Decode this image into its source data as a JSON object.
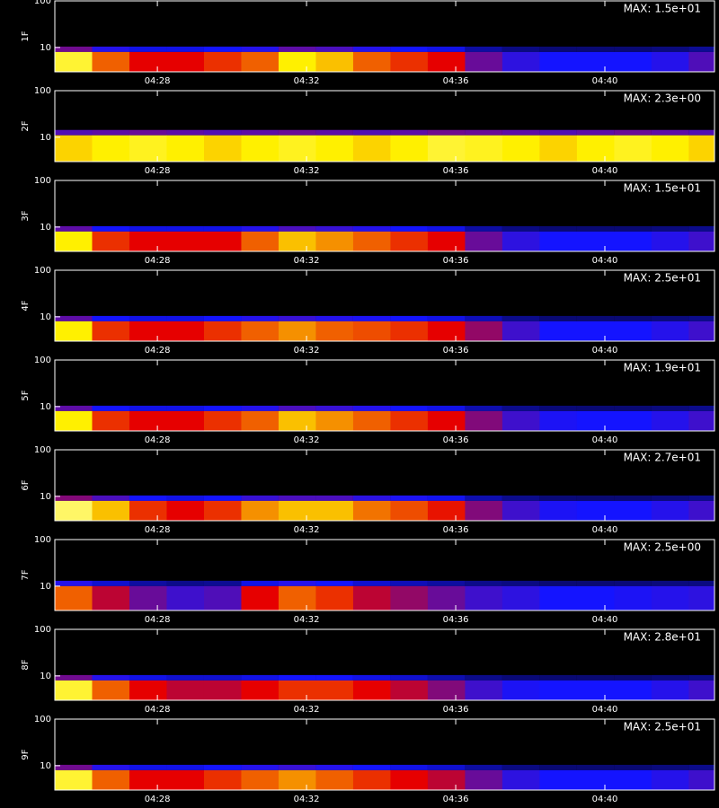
{
  "chart_data": [
    {
      "type": "heatmap",
      "label": "1F",
      "annotation": "MAX: 1.5e+01",
      "log_y": true,
      "ylim": [
        3,
        100
      ],
      "yticks": [
        10,
        100
      ],
      "xlim": [
        265.25,
        282.94
      ],
      "xticks": [
        {
          "value": 268,
          "label": "04:28"
        },
        {
          "value": 272,
          "label": "04:32"
        },
        {
          "value": 276,
          "label": "04:36"
        },
        {
          "value": 280,
          "label": "04:40"
        }
      ],
      "band": [
        3,
        8
      ],
      "x": [
        265.75,
        266.75,
        267.75,
        268.75,
        269.75,
        270.75,
        271.75,
        272.75,
        273.75,
        274.75,
        275.75,
        276.75,
        277.75,
        278.75,
        279.75,
        280.75,
        281.75,
        282.75
      ],
      "values": [
        0.8,
        0.6,
        0.5,
        0.5,
        0.55,
        0.6,
        0.75,
        0.7,
        0.6,
        0.55,
        0.5,
        0.35,
        0.28,
        0.25,
        0.25,
        0.25,
        0.27,
        0.32
      ]
    },
    {
      "type": "heatmap",
      "label": "2F",
      "annotation": "MAX: 2.3e+00",
      "log_y": true,
      "ylim": [
        3,
        100
      ],
      "yticks": [
        10,
        100
      ],
      "xlim": [
        265.25,
        282.94
      ],
      "xticks": [
        {
          "value": 268,
          "label": "04:28"
        },
        {
          "value": 272,
          "label": "04:32"
        },
        {
          "value": 276,
          "label": "04:36"
        },
        {
          "value": 280,
          "label": "04:40"
        }
      ],
      "band": [
        3,
        11
      ],
      "x": [
        265.75,
        266.75,
        267.75,
        268.75,
        269.75,
        270.75,
        271.75,
        272.75,
        273.75,
        274.75,
        275.75,
        276.75,
        277.75,
        278.75,
        279.75,
        280.75,
        281.75,
        282.75
      ],
      "values": [
        0.72,
        0.75,
        0.78,
        0.75,
        0.72,
        0.75,
        0.78,
        0.75,
        0.72,
        0.75,
        0.8,
        0.78,
        0.75,
        0.72,
        0.75,
        0.78,
        0.75,
        0.72
      ]
    },
    {
      "type": "heatmap",
      "label": "3F",
      "annotation": "MAX: 1.5e+01",
      "log_y": true,
      "ylim": [
        3,
        100
      ],
      "yticks": [
        10,
        100
      ],
      "xlim": [
        265.25,
        282.94
      ],
      "xticks": [
        {
          "value": 268,
          "label": "04:28"
        },
        {
          "value": 272,
          "label": "04:32"
        },
        {
          "value": 276,
          "label": "04:36"
        },
        {
          "value": 280,
          "label": "04:40"
        }
      ],
      "band": [
        3,
        8
      ],
      "x": [
        265.75,
        266.75,
        267.75,
        268.75,
        269.75,
        270.75,
        271.75,
        272.75,
        273.75,
        274.75,
        275.75,
        276.75,
        277.75,
        278.75,
        279.75,
        280.75,
        281.75,
        282.75
      ],
      "values": [
        0.75,
        0.55,
        0.5,
        0.5,
        0.5,
        0.6,
        0.7,
        0.65,
        0.6,
        0.55,
        0.5,
        0.35,
        0.28,
        0.25,
        0.25,
        0.25,
        0.27,
        0.3
      ]
    },
    {
      "type": "heatmap",
      "label": "4F",
      "annotation": "MAX: 2.5e+01",
      "log_y": true,
      "ylim": [
        3,
        100
      ],
      "yticks": [
        10,
        100
      ],
      "xlim": [
        265.25,
        282.94
      ],
      "xticks": [
        {
          "value": 268,
          "label": "04:28"
        },
        {
          "value": 272,
          "label": "04:32"
        },
        {
          "value": 276,
          "label": "04:36"
        },
        {
          "value": 280,
          "label": "04:40"
        }
      ],
      "band": [
        3,
        8
      ],
      "x": [
        265.75,
        266.75,
        267.75,
        268.75,
        269.75,
        270.75,
        271.75,
        272.75,
        273.75,
        274.75,
        275.75,
        276.75,
        277.75,
        278.75,
        279.75,
        280.75,
        281.75,
        282.75
      ],
      "values": [
        0.75,
        0.55,
        0.5,
        0.5,
        0.55,
        0.6,
        0.65,
        0.6,
        0.58,
        0.55,
        0.5,
        0.4,
        0.3,
        0.25,
        0.25,
        0.25,
        0.27,
        0.3
      ]
    },
    {
      "type": "heatmap",
      "label": "5F",
      "annotation": "MAX: 1.9e+01",
      "log_y": true,
      "ylim": [
        3,
        100
      ],
      "yticks": [
        10,
        100
      ],
      "xlim": [
        265.25,
        282.94
      ],
      "xticks": [
        {
          "value": 268,
          "label": "04:28"
        },
        {
          "value": 272,
          "label": "04:32"
        },
        {
          "value": 276,
          "label": "04:36"
        },
        {
          "value": 280,
          "label": "04:40"
        }
      ],
      "band": [
        3,
        8
      ],
      "x": [
        265.75,
        266.75,
        267.75,
        268.75,
        269.75,
        270.75,
        271.75,
        272.75,
        273.75,
        274.75,
        275.75,
        276.75,
        277.75,
        278.75,
        279.75,
        280.75,
        281.75,
        282.75
      ],
      "values": [
        0.75,
        0.55,
        0.5,
        0.5,
        0.55,
        0.6,
        0.7,
        0.65,
        0.6,
        0.55,
        0.5,
        0.38,
        0.3,
        0.26,
        0.25,
        0.25,
        0.27,
        0.3
      ]
    },
    {
      "type": "heatmap",
      "label": "6F",
      "annotation": "MAX: 2.7e+01",
      "log_y": true,
      "ylim": [
        3,
        100
      ],
      "yticks": [
        10,
        100
      ],
      "xlim": [
        265.25,
        282.94
      ],
      "xticks": [
        {
          "value": 268,
          "label": "04:28"
        },
        {
          "value": 272,
          "label": "04:32"
        },
        {
          "value": 276,
          "label": "04:36"
        },
        {
          "value": 280,
          "label": "04:40"
        }
      ],
      "band": [
        3,
        8
      ],
      "x": [
        265.75,
        266.75,
        267.75,
        268.75,
        269.75,
        270.75,
        271.75,
        272.75,
        273.75,
        274.75,
        275.75,
        276.75,
        277.75,
        278.75,
        279.75,
        280.75,
        281.75,
        282.75
      ],
      "values": [
        0.85,
        0.7,
        0.55,
        0.5,
        0.55,
        0.65,
        0.7,
        0.7,
        0.62,
        0.58,
        0.52,
        0.38,
        0.3,
        0.26,
        0.25,
        0.25,
        0.27,
        0.3
      ]
    },
    {
      "type": "heatmap",
      "label": "7F",
      "annotation": "MAX: 2.5e+00",
      "log_y": true,
      "ylim": [
        3,
        100
      ],
      "yticks": [
        10,
        100
      ],
      "xlim": [
        265.25,
        282.94
      ],
      "xticks": [
        {
          "value": 268,
          "label": "04:28"
        },
        {
          "value": 272,
          "label": "04:32"
        },
        {
          "value": 276,
          "label": "04:36"
        },
        {
          "value": 280,
          "label": "04:40"
        }
      ],
      "band": [
        3,
        10
      ],
      "x": [
        265.75,
        266.75,
        267.75,
        268.75,
        269.75,
        270.75,
        271.75,
        272.75,
        273.75,
        274.75,
        275.75,
        276.75,
        277.75,
        278.75,
        279.75,
        280.75,
        281.75,
        282.75
      ],
      "values": [
        0.6,
        0.45,
        0.35,
        0.3,
        0.32,
        0.5,
        0.6,
        0.55,
        0.45,
        0.4,
        0.35,
        0.3,
        0.28,
        0.25,
        0.25,
        0.26,
        0.27,
        0.28
      ]
    },
    {
      "type": "heatmap",
      "label": "8F",
      "annotation": "MAX: 2.8e+01",
      "log_y": true,
      "ylim": [
        3,
        100
      ],
      "yticks": [
        10,
        100
      ],
      "xlim": [
        265.25,
        282.94
      ],
      "xticks": [
        {
          "value": 268,
          "label": "04:28"
        },
        {
          "value": 272,
          "label": "04:32"
        },
        {
          "value": 276,
          "label": "04:36"
        },
        {
          "value": 280,
          "label": "04:40"
        }
      ],
      "band": [
        3,
        8
      ],
      "x": [
        265.75,
        266.75,
        267.75,
        268.75,
        269.75,
        270.75,
        271.75,
        272.75,
        273.75,
        274.75,
        275.75,
        276.75,
        277.75,
        278.75,
        279.75,
        280.75,
        281.75,
        282.75
      ],
      "values": [
        0.8,
        0.6,
        0.5,
        0.45,
        0.45,
        0.5,
        0.55,
        0.55,
        0.5,
        0.45,
        0.38,
        0.3,
        0.26,
        0.25,
        0.25,
        0.25,
        0.27,
        0.3
      ]
    },
    {
      "type": "heatmap",
      "label": "9F",
      "annotation": "MAX: 2.5e+01",
      "log_y": true,
      "ylim": [
        3,
        100
      ],
      "yticks": [
        10,
        100
      ],
      "xlim": [
        265.25,
        282.94
      ],
      "xticks": [
        {
          "value": 268,
          "label": "04:28"
        },
        {
          "value": 272,
          "label": "04:32"
        },
        {
          "value": 276,
          "label": "04:36"
        },
        {
          "value": 280,
          "label": "04:40"
        }
      ],
      "band": [
        3,
        8
      ],
      "x": [
        265.75,
        266.75,
        267.75,
        268.75,
        269.75,
        270.75,
        271.75,
        272.75,
        273.75,
        274.75,
        275.75,
        276.75,
        277.75,
        278.75,
        279.75,
        280.75,
        281.75,
        282.75
      ],
      "values": [
        0.8,
        0.6,
        0.5,
        0.5,
        0.55,
        0.6,
        0.65,
        0.6,
        0.55,
        0.5,
        0.45,
        0.35,
        0.28,
        0.25,
        0.25,
        0.25,
        0.27,
        0.3
      ]
    }
  ]
}
